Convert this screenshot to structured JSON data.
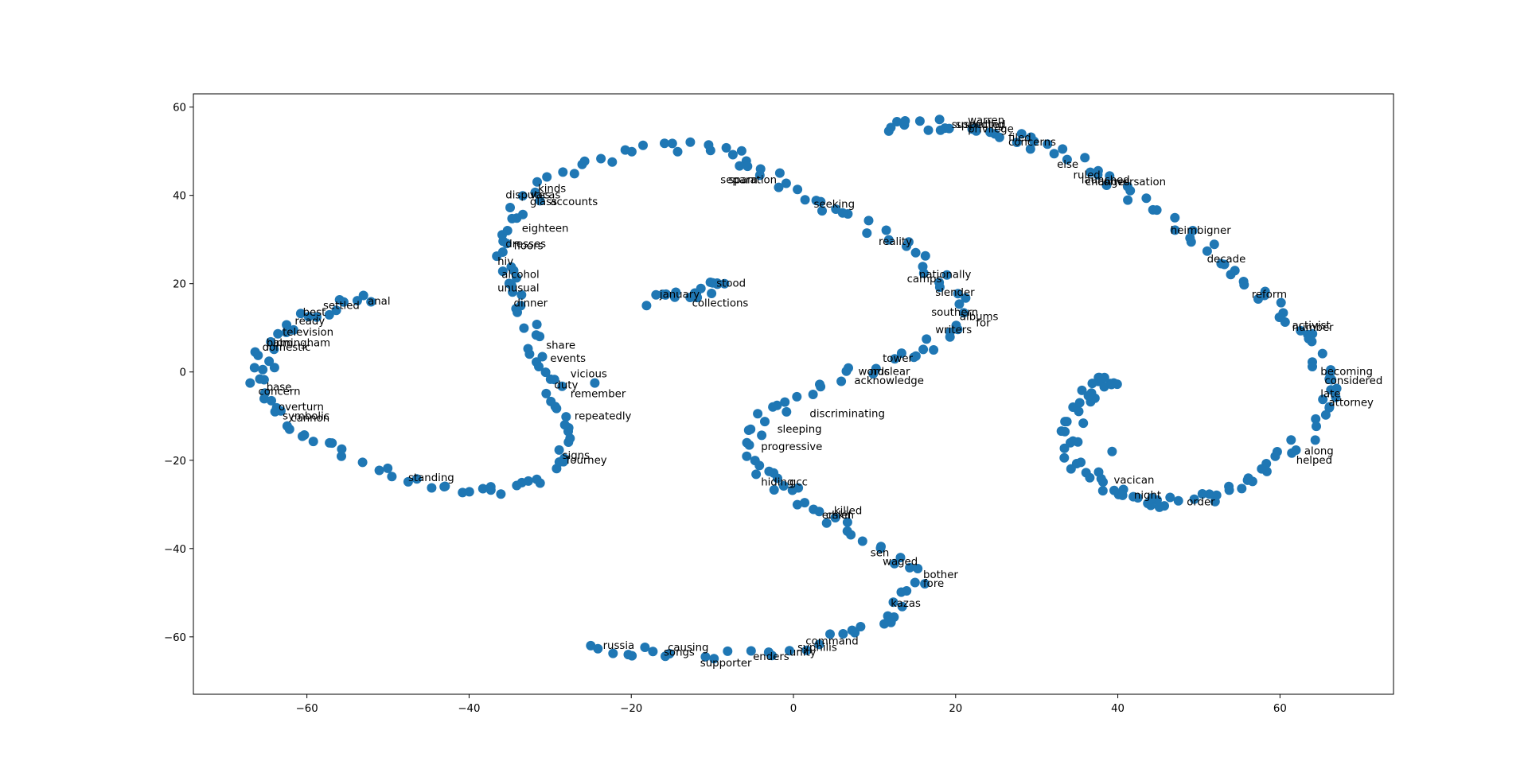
{
  "chart_data": {
    "type": "scatter",
    "title": "",
    "xlabel": "",
    "ylabel": "",
    "xlim": [
      -74,
      74
    ],
    "ylim": [
      -73,
      63
    ],
    "xticks": [
      -60,
      -40,
      -20,
      0,
      20,
      40,
      60
    ],
    "yticks": [
      60,
      40,
      20,
      0,
      -20,
      -40,
      -60
    ],
    "xtick_labels": [
      "−60",
      "−40",
      "−20",
      "0",
      "20",
      "40",
      "60"
    ],
    "ytick_labels": [
      "60",
      "40",
      "20",
      "0",
      "−20",
      "−40",
      "−60"
    ],
    "grid": false,
    "legend": "none",
    "point_color": "#1f77b4",
    "curves": [
      [
        [
          -52.5,
          16.4
        ],
        [
          -56,
          15
        ],
        [
          -60,
          12.5
        ],
        [
          -63,
          9
        ],
        [
          -65.5,
          5
        ],
        [
          -66.3,
          0
        ],
        [
          -65.5,
          -5
        ],
        [
          -63,
          -10
        ],
        [
          -60,
          -14
        ],
        [
          -56,
          -18
        ],
        [
          -50,
          -23
        ],
        [
          -45,
          -26
        ],
        [
          -40,
          -27.5
        ],
        [
          -35,
          -27
        ],
        [
          -31,
          -25
        ],
        [
          -28.5,
          -20.5
        ],
        [
          -28,
          -15
        ],
        [
          -28.5,
          -10
        ],
        [
          -29.5,
          -5
        ],
        [
          -30.5,
          0
        ],
        [
          -31.5,
          5
        ],
        [
          -32.5,
          10
        ],
        [
          -33.5,
          15
        ],
        [
          -34.5,
          20
        ],
        [
          -35.5,
          25
        ],
        [
          -36,
          30
        ],
        [
          -35,
          35
        ],
        [
          -32.5,
          40
        ],
        [
          -29,
          44
        ],
        [
          -24,
          48
        ],
        [
          -18,
          50.5
        ],
        [
          -12,
          51
        ],
        [
          -8,
          50
        ],
        [
          -5,
          47
        ],
        [
          -1,
          43
        ],
        [
          2,
          39
        ],
        [
          6,
          36
        ],
        [
          11,
          31
        ],
        [
          15,
          27
        ],
        [
          18,
          22
        ],
        [
          20,
          16
        ],
        [
          19.5,
          10
        ],
        [
          17,
          6
        ],
        [
          13,
          3
        ],
        [
          8,
          0
        ],
        [
          3,
          -3
        ],
        [
          -1,
          -7
        ],
        [
          -4,
          -11
        ],
        [
          -5,
          -16
        ],
        [
          -4,
          -21
        ],
        [
          -2,
          -25
        ],
        [
          1,
          -29
        ],
        [
          4,
          -33
        ],
        [
          8,
          -37
        ],
        [
          12,
          -42
        ],
        [
          15,
          -47
        ],
        [
          14,
          -52
        ],
        [
          11,
          -56
        ],
        [
          7,
          -59
        ],
        [
          1,
          -62
        ],
        [
          -6,
          -64
        ],
        [
          -14,
          -63.5
        ],
        [
          -20,
          -63
        ],
        [
          -25,
          -62
        ]
      ],
      [
        [
          -17,
          16
        ],
        [
          -14,
          17.3
        ],
        [
          -11,
          18.5
        ],
        [
          -8.5,
          20
        ]
      ],
      [
        [
          11,
          55.5
        ],
        [
          16,
          56
        ],
        [
          22,
          55.3
        ],
        [
          28,
          53
        ],
        [
          33,
          49
        ],
        [
          38,
          44
        ],
        [
          44,
          37
        ],
        [
          50,
          29
        ],
        [
          55,
          22
        ],
        [
          59,
          15
        ],
        [
          63,
          8
        ],
        [
          65.5,
          1
        ],
        [
          66,
          -5
        ],
        [
          64,
          -13
        ],
        [
          60,
          -20
        ],
        [
          56,
          -25
        ],
        [
          51,
          -28.5
        ],
        [
          46,
          -30
        ],
        [
          42,
          -28.5
        ],
        [
          38,
          -25.5
        ],
        [
          35,
          -20
        ],
        [
          34,
          -15
        ],
        [
          35,
          -9
        ],
        [
          36.5,
          -4
        ],
        [
          38.5,
          -1.5
        ],
        [
          39.5,
          -2.5
        ]
      ]
    ],
    "curve_counts": [
      240,
      18,
      150
    ],
    "extra_points": [
      [
        -67,
        -2.5
      ],
      [
        -64,
        1
      ],
      [
        39.3,
        -18
      ],
      [
        -3,
        -22.5
      ],
      [
        -24.5,
        -2.5
      ]
    ],
    "labels": [
      {
        "text": "anal",
        "x": -52.5,
        "y": 16
      },
      {
        "text": "settled",
        "x": -58,
        "y": 15
      },
      {
        "text": "best",
        "x": -60.5,
        "y": 13.5
      },
      {
        "text": "ready",
        "x": -61.5,
        "y": 11.5
      },
      {
        "text": "television",
        "x": -63,
        "y": 9
      },
      {
        "text": "birmingham",
        "x": -65,
        "y": 6.5
      },
      {
        "text": "palm",
        "x": -65,
        "y": 6.5
      },
      {
        "text": "domestic",
        "x": -65.5,
        "y": 5.5
      },
      {
        "text": "base",
        "x": -65,
        "y": -3.5
      },
      {
        "text": "concern",
        "x": -66,
        "y": -4.5
      },
      {
        "text": "overturn",
        "x": -63.5,
        "y": -8
      },
      {
        "text": "symbolic",
        "x": -63,
        "y": -10
      },
      {
        "text": "cannon",
        "x": -62,
        "y": -10.5
      },
      {
        "text": "standing",
        "x": -47.5,
        "y": -24
      },
      {
        "text": "disputes",
        "x": -35.5,
        "y": 40
      },
      {
        "text": "kinds",
        "x": -31.5,
        "y": 41.5
      },
      {
        "text": "vacas",
        "x": -32.5,
        "y": 40
      },
      {
        "text": "glass",
        "x": -32.5,
        "y": 38.5
      },
      {
        "text": "accounts",
        "x": -30,
        "y": 38.5
      },
      {
        "text": "eighteen",
        "x": -33.5,
        "y": 32.5
      },
      {
        "text": "dresses",
        "x": -35.5,
        "y": 29
      },
      {
        "text": "floors",
        "x": -34.5,
        "y": 28.5
      },
      {
        "text": "hiv",
        "x": -36.5,
        "y": 25
      },
      {
        "text": "alcohol",
        "x": -36,
        "y": 22
      },
      {
        "text": "unusual",
        "x": -36.5,
        "y": 19
      },
      {
        "text": "dinner",
        "x": -34.5,
        "y": 15.5
      },
      {
        "text": "share",
        "x": -30.5,
        "y": 6
      },
      {
        "text": "events",
        "x": -30,
        "y": 3
      },
      {
        "text": "vicious",
        "x": -27.5,
        "y": -0.5
      },
      {
        "text": "duty",
        "x": -29.5,
        "y": -3
      },
      {
        "text": "remember",
        "x": -27.5,
        "y": -5
      },
      {
        "text": "repeatedly",
        "x": -27,
        "y": -10
      },
      {
        "text": "signs",
        "x": -28.5,
        "y": -19
      },
      {
        "text": "fourney",
        "x": -28,
        "y": -20
      },
      {
        "text": "separation",
        "x": -9,
        "y": 43.5
      },
      {
        "text": "spam",
        "x": -8,
        "y": 43.5
      },
      {
        "text": "seeking",
        "x": 2.5,
        "y": 38
      },
      {
        "text": "reality",
        "x": 10.5,
        "y": 29.5
      },
      {
        "text": "nationally",
        "x": 15.5,
        "y": 22
      },
      {
        "text": "camps",
        "x": 14,
        "y": 21
      },
      {
        "text": "slender",
        "x": 17.5,
        "y": 18
      },
      {
        "text": "southern",
        "x": 17,
        "y": 13.5
      },
      {
        "text": "albums",
        "x": 20.5,
        "y": 12.5
      },
      {
        "text": "for",
        "x": 22.5,
        "y": 11
      },
      {
        "text": "writers",
        "x": 17.5,
        "y": 9.5
      },
      {
        "text": "tower",
        "x": 11,
        "y": 3
      },
      {
        "text": "words",
        "x": 8,
        "y": 0
      },
      {
        "text": "nuclear",
        "x": 9.5,
        "y": 0
      },
      {
        "text": "acknowledge",
        "x": 7.5,
        "y": -2
      },
      {
        "text": "discriminating",
        "x": 2,
        "y": -9.5
      },
      {
        "text": "sleeping",
        "x": -2,
        "y": -13
      },
      {
        "text": "progressive",
        "x": -4,
        "y": -17
      },
      {
        "text": "hiding",
        "x": -4,
        "y": -25
      },
      {
        "text": "gcc",
        "x": -0.5,
        "y": -25
      },
      {
        "text": "killed",
        "x": 5,
        "y": -31.5
      },
      {
        "text": "erskin",
        "x": 3.5,
        "y": -32.5
      },
      {
        "text": "chief",
        "x": 4,
        "y": -32.5
      },
      {
        "text": "sen",
        "x": 9.5,
        "y": -41
      },
      {
        "text": "waged",
        "x": 11,
        "y": -43
      },
      {
        "text": "bother",
        "x": 16,
        "y": -46
      },
      {
        "text": "fore",
        "x": 16,
        "y": -48
      },
      {
        "text": "kazas",
        "x": 12,
        "y": -52.5
      },
      {
        "text": "command",
        "x": 1.5,
        "y": -61
      },
      {
        "text": "syphilis",
        "x": 0.5,
        "y": -62.5
      },
      {
        "text": "unity",
        "x": -0.5,
        "y": -63.5
      },
      {
        "text": "enders",
        "x": -5,
        "y": -64.5
      },
      {
        "text": "supporter",
        "x": -11.5,
        "y": -66
      },
      {
        "text": "causing",
        "x": -15.5,
        "y": -62.5
      },
      {
        "text": "songs",
        "x": -16,
        "y": -63.5
      },
      {
        "text": "russia",
        "x": -23.5,
        "y": -62
      },
      {
        "text": "january",
        "x": -16.5,
        "y": 17.5
      },
      {
        "text": "stood",
        "x": -9.5,
        "y": 20
      },
      {
        "text": "collections",
        "x": -12.5,
        "y": 15.5
      },
      {
        "text": "warren",
        "x": 21.5,
        "y": 57
      },
      {
        "text": "suspected",
        "x": 19.5,
        "y": 56
      },
      {
        "text": "spending",
        "x": 20,
        "y": 56
      },
      {
        "text": "privilege",
        "x": 21.5,
        "y": 55
      },
      {
        "text": "filed",
        "x": 26.5,
        "y": 53
      },
      {
        "text": "concerns",
        "x": 26.5,
        "y": 52
      },
      {
        "text": "else",
        "x": 32.5,
        "y": 47
      },
      {
        "text": "ruled",
        "x": 34.5,
        "y": 44.5
      },
      {
        "text": "launched",
        "x": 35.5,
        "y": 43.5
      },
      {
        "text": "conversation",
        "x": 37.5,
        "y": 43
      },
      {
        "text": "changes",
        "x": 36,
        "y": 43
      },
      {
        "text": "heimbigner",
        "x": 46.5,
        "y": 32
      },
      {
        "text": "decade",
        "x": 51,
        "y": 25.5
      },
      {
        "text": "reform",
        "x": 56.5,
        "y": 17.5
      },
      {
        "text": "activist",
        "x": 61.5,
        "y": 10.5
      },
      {
        "text": "number",
        "x": 61.5,
        "y": 10
      },
      {
        "text": "becoming",
        "x": 65,
        "y": 0
      },
      {
        "text": "considered",
        "x": 65.5,
        "y": -2
      },
      {
        "text": "late",
        "x": 65,
        "y": -5
      },
      {
        "text": "attorney",
        "x": 66,
        "y": -7
      },
      {
        "text": "along",
        "x": 63,
        "y": -18
      },
      {
        "text": "helped",
        "x": 62,
        "y": -20
      },
      {
        "text": "vacican",
        "x": 39.5,
        "y": -24.5
      },
      {
        "text": "night",
        "x": 42,
        "y": -28
      },
      {
        "text": "order",
        "x": 48.5,
        "y": -29.5
      }
    ]
  }
}
